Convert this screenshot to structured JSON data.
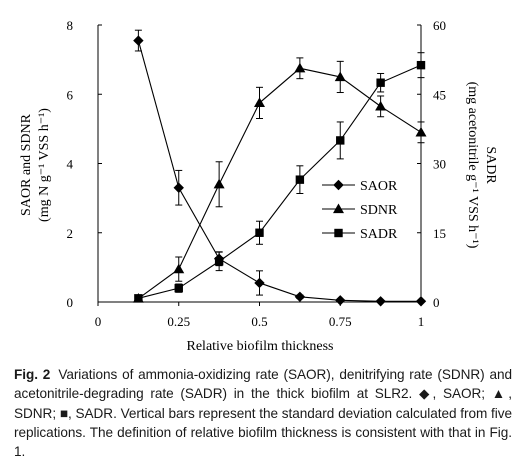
{
  "chart_data": {
    "type": "line",
    "x": [
      0.125,
      0.25,
      0.375,
      0.5,
      0.625,
      0.75,
      0.875,
      1.0
    ],
    "xlabel": "Relative biofilm thickness",
    "xlim": [
      0,
      1
    ],
    "xticks": [
      "0",
      "0.25",
      "0.5",
      "0.75",
      "1"
    ],
    "ylabel_left_line1": "SAOR and SDNR",
    "ylabel_left_line2": "(mg N g⁻¹ VSS h⁻¹)",
    "ylim_left": [
      0,
      8
    ],
    "yticks_left": [
      "0",
      "2",
      "4",
      "6",
      "8"
    ],
    "ylabel_right_line1": "SADR",
    "ylabel_right_line2": "(mg acetonitrile g⁻¹ VSS h⁻¹)",
    "ylim_right": [
      0,
      60
    ],
    "yticks_right": [
      "0",
      "15",
      "30",
      "45",
      "60"
    ],
    "grid": false,
    "legend_position": "center-right",
    "series": [
      {
        "name": "SAOR",
        "axis": "left",
        "marker": "diamond",
        "values": [
          7.55,
          3.3,
          1.25,
          0.55,
          0.15,
          0.05,
          0.02,
          0.02
        ],
        "error": [
          0.3,
          0.5,
          0.2,
          0.35,
          0.05,
          0.02,
          0.01,
          0.01
        ]
      },
      {
        "name": "SDNR",
        "axis": "left",
        "marker": "triangle",
        "values": [
          0.1,
          0.95,
          3.4,
          5.75,
          6.75,
          6.5,
          5.65,
          4.9
        ],
        "error": [
          0.1,
          0.35,
          0.65,
          0.45,
          0.3,
          0.45,
          0.3,
          0.3
        ]
      },
      {
        "name": "SADR",
        "axis": "right",
        "marker": "square",
        "values": [
          0.8,
          3.0,
          8.8,
          15.0,
          26.5,
          35.0,
          47.5,
          51.3
        ],
        "error": [
          0.5,
          0.9,
          2.0,
          2.5,
          3.0,
          4.0,
          2.0,
          2.7
        ]
      }
    ]
  },
  "caption": {
    "label": "Fig. 2",
    "text": "Variations of ammonia-oxidizing rate (SAOR), denitrifying rate (SDNR) and acetonitrile-degrading rate (SADR) in the thick biofilm at SLR2. ◆, SAOR; ▲, SDNR; ■, SADR. Vertical bars represent the standard deviation calculated from five replications. The definition of relative biofilm thickness is consistent with that in Fig. 1."
  }
}
